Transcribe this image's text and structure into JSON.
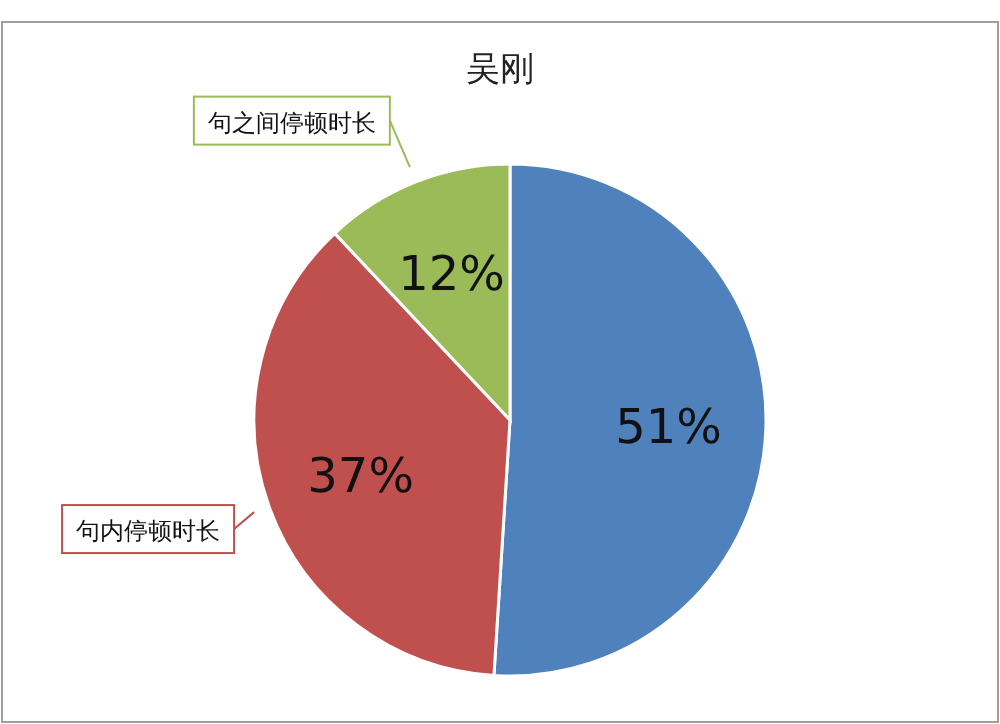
{
  "chart_data": {
    "type": "pie",
    "title": "吴刚",
    "categories": [
      null,
      "句内停顿时长",
      "句之间停顿时长"
    ],
    "values": [
      51,
      37,
      12
    ],
    "colors": [
      "#4f81bd",
      "#c0504d",
      "#9bbb59"
    ],
    "value_labels": [
      "51%",
      "37%",
      "12%"
    ]
  }
}
